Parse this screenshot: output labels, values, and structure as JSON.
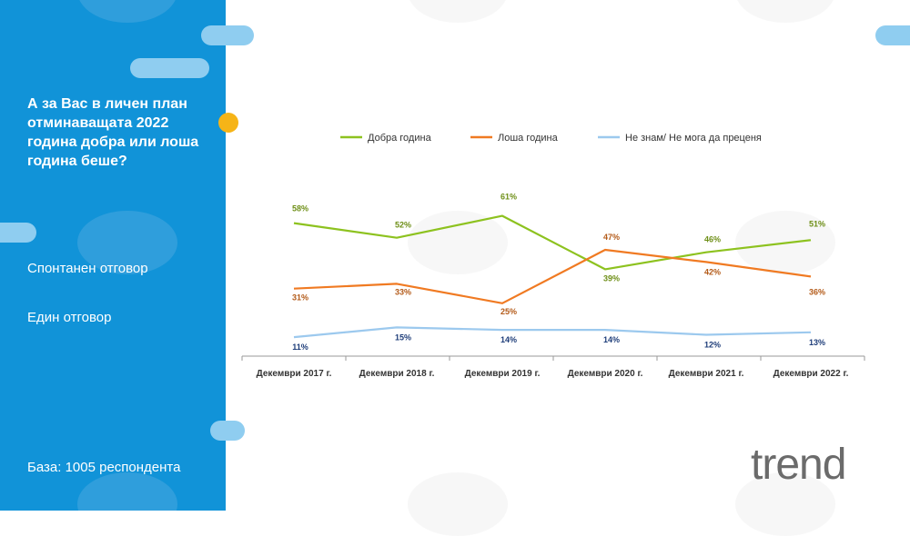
{
  "sidebar": {
    "question": "А за Вас в личен план отминаващата 2022 година добра или лоша година беше?",
    "note1": "Спонтанен  отговор",
    "note2": "Един отговор",
    "base": "База: 1005 респондента"
  },
  "logo": {
    "text": "trend"
  },
  "chart_data": {
    "type": "line",
    "categories": [
      "Декември 2017 г.",
      "Декември 2018 г.",
      "Декември 2019 г.",
      "Декември 2020 г.",
      "Декември 2021 г.",
      "Декември 2022 г."
    ],
    "series": [
      {
        "name": "Добра година",
        "color": "#8dc21f",
        "label_color": "#6e8f17",
        "values": [
          58,
          52,
          61,
          39,
          46,
          51
        ]
      },
      {
        "name": "Лоша година",
        "color": "#f07a22",
        "label_color": "#b35a18",
        "values": [
          31,
          33,
          25,
          47,
          42,
          36
        ]
      },
      {
        "name": "Не знам/ Не мога да преценя",
        "color": "#9cc9ee",
        "label_color": "#1f3e7a",
        "values": [
          11,
          15,
          14,
          14,
          12,
          13
        ]
      }
    ],
    "value_suffix": "%",
    "legend_position": "top",
    "grid": false
  }
}
